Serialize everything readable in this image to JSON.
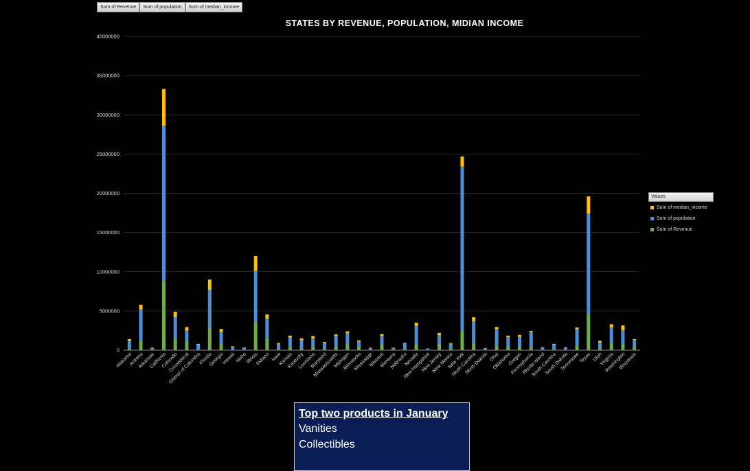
{
  "field_buttons": [
    "Sum of Revenue",
    "Sum of population",
    "Sum of median_income"
  ],
  "legend": {
    "header": "Values",
    "items": [
      {
        "label": "Sum of median_income",
        "color": "#ffc000"
      },
      {
        "label": "Sum of population",
        "color": "#4a90d9"
      },
      {
        "label": "Sum of Revenue",
        "color": "#70ad47"
      }
    ]
  },
  "textbox": {
    "heading": "Top two products in January",
    "lines": [
      "Vanities",
      "Collectibles"
    ]
  },
  "chart_data": {
    "type": "bar",
    "stacked": true,
    "title": "STATES BY REVENUE, POPULATION, MIDIAN INCOME",
    "ylim": [
      0,
      40000000
    ],
    "yticks": [
      0,
      5000000,
      10000000,
      15000000,
      20000000,
      25000000,
      30000000,
      35000000,
      40000000
    ],
    "ytick_labels": [
      "0",
      "5000000",
      "10000000",
      "15000000",
      "20000000",
      "25000000",
      "30000000",
      "35000000",
      "40000000"
    ],
    "grid": true,
    "legend_position": "right",
    "categories": [
      "Alabama",
      "Arizona",
      "Arkansas",
      "California",
      "Colorado",
      "Connecticut",
      "District of Columbia",
      "Florida",
      "Georgia",
      "Hawaii",
      "Idaho",
      "Illinois",
      "Indiana",
      "Iowa",
      "Kansas",
      "Kentucky",
      "Louisiana",
      "Maryland",
      "Massachusetts",
      "Michigan",
      "Minnesota",
      "Mississippi",
      "Missouri",
      "Montana",
      "Nebraska",
      "Nevada",
      "New Hampshire",
      "New Jersey",
      "New Mexico",
      "New York",
      "North Carolina",
      "North Dakota",
      "Ohio",
      "Oklahoma",
      "Oregon",
      "Pennsylvania",
      "Rhode Island",
      "South Carolina",
      "South Dakota",
      "Tennessee",
      "Texas",
      "Utah",
      "Virginia",
      "Washington",
      "Wisconsin"
    ],
    "series": [
      {
        "name": "Sum of Revenue",
        "color": "#70ad47",
        "values": [
          200000,
          1200000,
          50000,
          8900000,
          1400000,
          1100000,
          100000,
          2800000,
          800000,
          80000,
          60000,
          3600000,
          1500000,
          150000,
          450000,
          250000,
          450000,
          250000,
          450000,
          800000,
          350000,
          80000,
          750000,
          60000,
          150000,
          800000,
          50000,
          800000,
          200000,
          2500000,
          950000,
          50000,
          600000,
          400000,
          400000,
          350000,
          60000,
          150000,
          60000,
          600000,
          4600000,
          250000,
          900000,
          800000,
          350000
        ]
      },
      {
        "name": "Sum of population",
        "color": "#4a90d9",
        "values": [
          1000000,
          4000000,
          200000,
          19700000,
          2800000,
          1400000,
          600000,
          4900000,
          1500000,
          380000,
          280000,
          6500000,
          2500000,
          650000,
          1150000,
          1000000,
          1050000,
          650000,
          1350000,
          1350000,
          750000,
          200000,
          1050000,
          230000,
          730000,
          2300000,
          130000,
          1100000,
          600000,
          20900000,
          2700000,
          180000,
          2100000,
          1250000,
          1300000,
          1950000,
          280000,
          550000,
          280000,
          2050000,
          12800000,
          750000,
          2000000,
          1750000,
          950000
        ]
      },
      {
        "name": "Sum of median_income",
        "color": "#ffc000",
        "values": [
          200000,
          600000,
          70000,
          4700000,
          700000,
          450000,
          100000,
          1300000,
          400000,
          50000,
          30000,
          1900000,
          550000,
          120000,
          250000,
          250000,
          300000,
          150000,
          220000,
          250000,
          150000,
          50000,
          250000,
          40000,
          60000,
          400000,
          40000,
          300000,
          100000,
          1300000,
          550000,
          50000,
          250000,
          200000,
          250000,
          150000,
          50000,
          100000,
          50000,
          250000,
          2200000,
          200000,
          400000,
          600000,
          100000
        ]
      }
    ]
  }
}
